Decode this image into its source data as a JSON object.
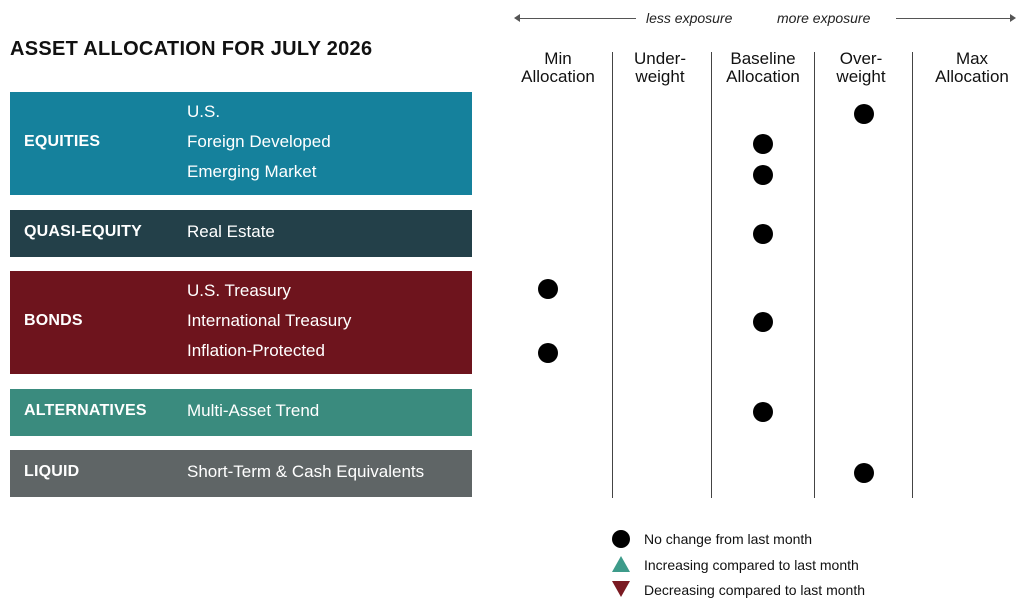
{
  "title": "ASSET ALLOCATION FOR JULY 2026",
  "exposure": {
    "less": "less exposure",
    "more": "more exposure"
  },
  "columns": [
    {
      "line1": "Min",
      "line2": "Allocation"
    },
    {
      "line1": "Under-",
      "line2": "weight"
    },
    {
      "line1": "Baseline",
      "line2": "Allocation"
    },
    {
      "line1": "Over-",
      "line2": "weight"
    },
    {
      "line1": "Max",
      "line2": "Allocation"
    }
  ],
  "groups": [
    {
      "label": "EQUITIES",
      "color": "#15819c",
      "items": [
        "U.S.",
        "Foreign Developed",
        "Emerging Market"
      ]
    },
    {
      "label": "QUASI-EQUITY",
      "color": "#234049",
      "items": [
        "Real Estate"
      ]
    },
    {
      "label": "BONDS",
      "color": "#6e141d",
      "items": [
        "U.S. Treasury",
        "International Treasury",
        "Inflation-Protected"
      ]
    },
    {
      "label": "ALTERNATIVES",
      "color": "#3a8b7e",
      "items": [
        "Multi-Asset Trend"
      ]
    },
    {
      "label": "LIQUID",
      "color": "#5f6566",
      "items": [
        "Short-Term & Cash Equivalents"
      ]
    }
  ],
  "legend": [
    {
      "symbol": "circle",
      "color": "#000000",
      "text": "No change from last month"
    },
    {
      "symbol": "triangle-up",
      "color": "#3d9b8a",
      "text": "Increasing compared to last month"
    },
    {
      "symbol": "triangle-down",
      "color": "#7a1a22",
      "text": "Decreasing compared to last month"
    }
  ],
  "chart_data": {
    "type": "scatter",
    "title": "ASSET ALLOCATION FOR JULY 2026",
    "categories": [
      "Min Allocation",
      "Under-weight",
      "Baseline Allocation",
      "Over-weight",
      "Max Allocation"
    ],
    "points": [
      {
        "group": "EQUITIES",
        "item": "U.S.",
        "allocation": "Over-weight",
        "change": "no change"
      },
      {
        "group": "EQUITIES",
        "item": "Foreign Developed",
        "allocation": "Baseline Allocation",
        "change": "no change"
      },
      {
        "group": "EQUITIES",
        "item": "Emerging Market",
        "allocation": "Baseline Allocation",
        "change": "no change"
      },
      {
        "group": "QUASI-EQUITY",
        "item": "Real Estate",
        "allocation": "Baseline Allocation",
        "change": "no change"
      },
      {
        "group": "BONDS",
        "item": "U.S. Treasury",
        "allocation": "Min Allocation",
        "change": "no change"
      },
      {
        "group": "BONDS",
        "item": "International Treasury",
        "allocation": "Baseline Allocation",
        "change": "no change"
      },
      {
        "group": "BONDS",
        "item": "Inflation-Protected",
        "allocation": "Min Allocation",
        "change": "no change"
      },
      {
        "group": "ALTERNATIVES",
        "item": "Multi-Asset Trend",
        "allocation": "Baseline Allocation",
        "change": "no change"
      },
      {
        "group": "LIQUID",
        "item": "Short-Term & Cash Equivalents",
        "allocation": "Over-weight",
        "change": "no change"
      }
    ],
    "legend_position": "bottom-right"
  }
}
